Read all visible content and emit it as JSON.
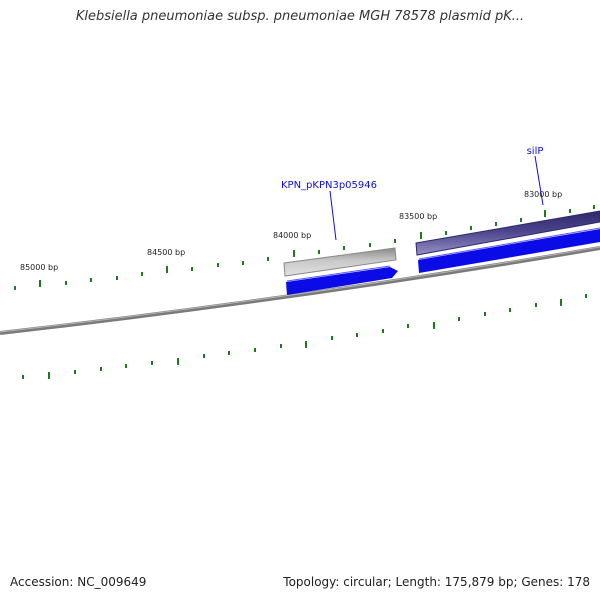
{
  "title": "Klebsiella pneumoniae subsp. pneumoniae MGH 78578 plasmid pK...",
  "footer": {
    "accession": "Accession: NC_009649",
    "summary": "Topology: circular; Length: 175,879 bp; Genes: 178"
  },
  "colors": {
    "backbone": "#7a7a7a",
    "tick": "#1f7a1f",
    "gene_grey": "#a8a8a8",
    "gene_purple": "#4b438c",
    "gene_blue": "#0b0be8",
    "label_blue": "#1010c8"
  },
  "position_labels": [
    "85000 bp",
    "84500 bp",
    "84000 bp",
    "83500 bp",
    "83000 bp"
  ],
  "gene_labels": [
    "KPN_pKPN3p05946",
    "silP"
  ]
}
